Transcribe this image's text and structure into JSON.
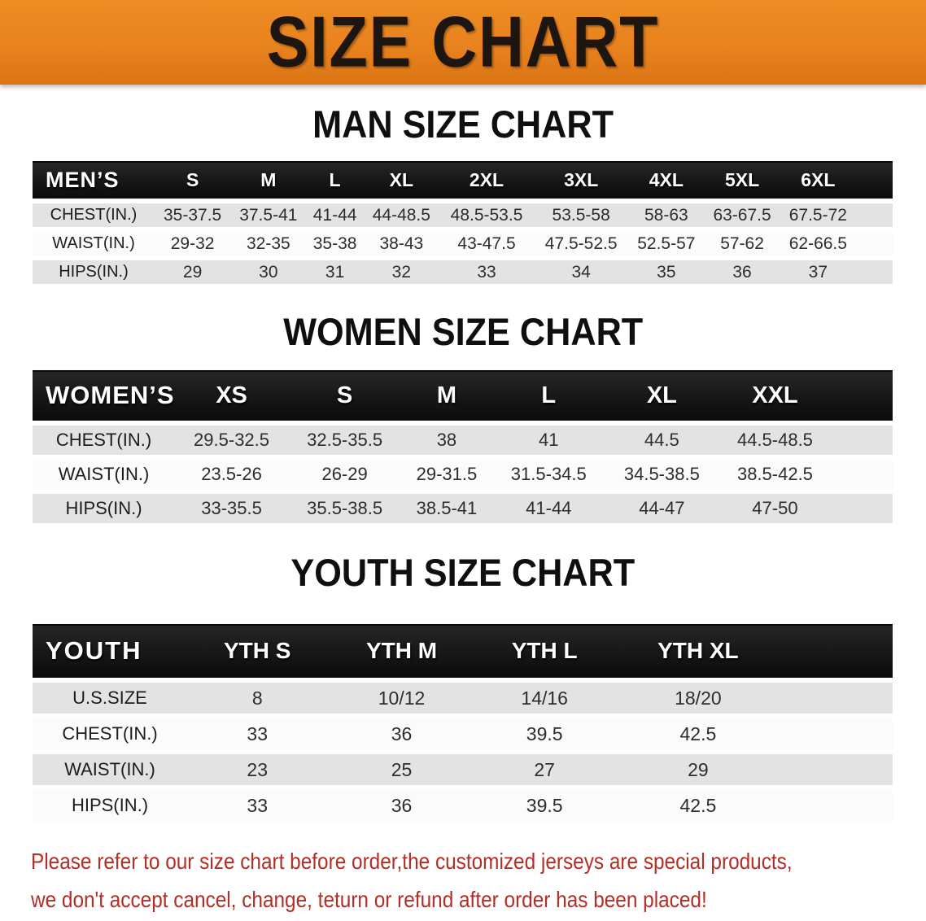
{
  "banner": {
    "title": "SIZE CHART",
    "bg_color": "#e8821e",
    "text_color": "#1c1510"
  },
  "colors": {
    "table_header_bg": "#161616",
    "row_stripe_gray": "#e3e3e3",
    "row_stripe_white": "#fbfbfb",
    "disclaimer_red": "#b22e26"
  },
  "sections": [
    {
      "id": "men",
      "title": "MAN SIZE CHART",
      "table": {
        "header": [
          "MEN’S",
          "S",
          "M",
          "L",
          "XL",
          "2XL",
          "3XL",
          "4XL",
          "5XL",
          "6XL"
        ],
        "rows": [
          [
            "CHEST(IN.)",
            "35-37.5",
            "37.5-41",
            "41-44",
            "44-48.5",
            "48.5-53.5",
            "53.5-58",
            "58-63",
            "63-67.5",
            "67.5-72"
          ],
          [
            "WAIST(IN.)",
            "29-32",
            "32-35",
            "35-38",
            "38-43",
            "43-47.5",
            "47.5-52.5",
            "52.5-57",
            "57-62",
            "62-66.5"
          ],
          [
            "HIPS(IN.)",
            "29",
            "30",
            "31",
            "32",
            "33",
            "34",
            "35",
            "36",
            "37"
          ]
        ]
      }
    },
    {
      "id": "women",
      "title": "WOMEN SIZE CHART",
      "table": {
        "header": [
          "WOMEN’S",
          "XS",
          "S",
          "M",
          "L",
          "XL",
          "XXL"
        ],
        "rows": [
          [
            "CHEST(IN.)",
            "29.5-32.5",
            "32.5-35.5",
            "38",
            "41",
            "44.5",
            "44.5-48.5"
          ],
          [
            "WAIST(IN.)",
            "23.5-26",
            "26-29",
            "29-31.5",
            "31.5-34.5",
            "34.5-38.5",
            "38.5-42.5"
          ],
          [
            "HIPS(IN.)",
            "33-35.5",
            "35.5-38.5",
            "38.5-41",
            "41-44",
            "44-47",
            "47-50"
          ]
        ]
      }
    },
    {
      "id": "youth",
      "title": "YOUTH SIZE CHART",
      "table": {
        "header": [
          "YOUTH",
          "YTH S",
          "YTH M",
          "YTH L",
          "YTH XL"
        ],
        "rows": [
          [
            "U.S.SIZE",
            "8",
            "10/12",
            "14/16",
            "18/20"
          ],
          [
            "CHEST(IN.)",
            "33",
            "36",
            "39.5",
            "42.5"
          ],
          [
            "WAIST(IN.)",
            "23",
            "25",
            "27",
            "29"
          ],
          [
            "HIPS(IN.)",
            "33",
            "36",
            "39.5",
            "42.5"
          ]
        ]
      }
    }
  ],
  "disclaimer": {
    "color": "#b22e26",
    "lines": [
      "Please refer to our size chart before order,the customized jerseys are special products,",
      "we don't accept cancel, change, teturn or refund after order has been placed!"
    ]
  }
}
